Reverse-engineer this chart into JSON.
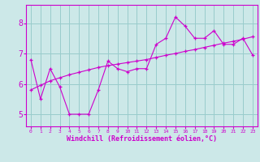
{
  "x": [
    0,
    1,
    2,
    3,
    4,
    5,
    6,
    7,
    8,
    9,
    10,
    11,
    12,
    13,
    14,
    15,
    16,
    17,
    18,
    19,
    20,
    21,
    22,
    23
  ],
  "y_actual": [
    6.8,
    5.5,
    6.5,
    5.9,
    5.0,
    5.0,
    5.0,
    5.8,
    6.75,
    6.5,
    6.4,
    6.5,
    6.5,
    7.3,
    7.5,
    8.2,
    7.9,
    7.5,
    7.5,
    7.75,
    7.3,
    7.3,
    7.5,
    6.95
  ],
  "y_trend": [
    5.8,
    5.95,
    6.1,
    6.2,
    6.3,
    6.38,
    6.46,
    6.54,
    6.6,
    6.65,
    6.7,
    6.75,
    6.8,
    6.87,
    6.94,
    7.0,
    7.07,
    7.13,
    7.2,
    7.27,
    7.34,
    7.4,
    7.47,
    7.55
  ],
  "line_color": "#cc00cc",
  "bg_color": "#cce8e8",
  "grid_color": "#99cccc",
  "xlabel": "Windchill (Refroidissement éolien,°C)",
  "ylim": [
    4.6,
    8.6
  ],
  "xlim": [
    -0.5,
    23.5
  ],
  "yticks": [
    5,
    6,
    7,
    8
  ],
  "xticks": [
    0,
    1,
    2,
    3,
    4,
    5,
    6,
    7,
    8,
    9,
    10,
    11,
    12,
    13,
    14,
    15,
    16,
    17,
    18,
    19,
    20,
    21,
    22,
    23
  ]
}
